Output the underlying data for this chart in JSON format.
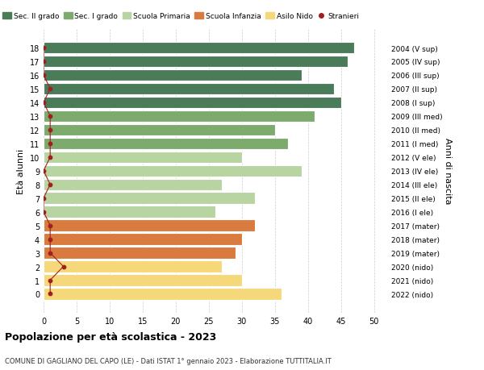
{
  "ages": [
    18,
    17,
    16,
    15,
    14,
    13,
    12,
    11,
    10,
    9,
    8,
    7,
    6,
    5,
    4,
    3,
    2,
    1,
    0
  ],
  "right_labels": [
    "2004 (V sup)",
    "2005 (IV sup)",
    "2006 (III sup)",
    "2007 (II sup)",
    "2008 (I sup)",
    "2009 (III med)",
    "2010 (II med)",
    "2011 (I med)",
    "2012 (V ele)",
    "2013 (IV ele)",
    "2014 (III ele)",
    "2015 (II ele)",
    "2016 (I ele)",
    "2017 (mater)",
    "2018 (mater)",
    "2019 (mater)",
    "2020 (nido)",
    "2021 (nido)",
    "2022 (nido)"
  ],
  "bar_values": [
    47,
    46,
    39,
    44,
    45,
    41,
    35,
    37,
    30,
    39,
    27,
    32,
    26,
    32,
    30,
    29,
    27,
    30,
    36
  ],
  "stranieri_values": [
    0,
    0,
    0,
    1,
    0,
    1,
    1,
    1,
    1,
    0,
    1,
    0,
    0,
    1,
    1,
    1,
    3,
    1,
    1
  ],
  "bar_colors": [
    "#4a7c59",
    "#4a7c59",
    "#4a7c59",
    "#4a7c59",
    "#4a7c59",
    "#7dab6e",
    "#7dab6e",
    "#7dab6e",
    "#b8d4a0",
    "#b8d4a0",
    "#b8d4a0",
    "#b8d4a0",
    "#b8d4a0",
    "#d97b3e",
    "#d97b3e",
    "#d97b3e",
    "#f5d87a",
    "#f5d87a",
    "#f5d87a"
  ],
  "legend_labels": [
    "Sec. II grado",
    "Sec. I grado",
    "Scuola Primaria",
    "Scuola Infanzia",
    "Asilo Nido",
    "Stranieri"
  ],
  "legend_colors": [
    "#4a7c59",
    "#7dab6e",
    "#b8d4a0",
    "#d97b3e",
    "#f5d87a",
    "#a02020"
  ],
  "ylabel": "Età alunni",
  "right_ylabel": "Anni di nascita",
  "title": "Popolazione per età scolastica - 2023",
  "subtitle": "COMUNE DI GAGLIANO DEL CAPO (LE) - Dati ISTAT 1° gennaio 2023 - Elaborazione TUTTITALIA.IT",
  "xlim": [
    0,
    52
  ],
  "xticks": [
    0,
    5,
    10,
    15,
    20,
    25,
    30,
    35,
    40,
    45,
    50
  ],
  "bg_color": "#ffffff",
  "bar_edgecolor": "#ffffff",
  "stranieri_color": "#a02020"
}
